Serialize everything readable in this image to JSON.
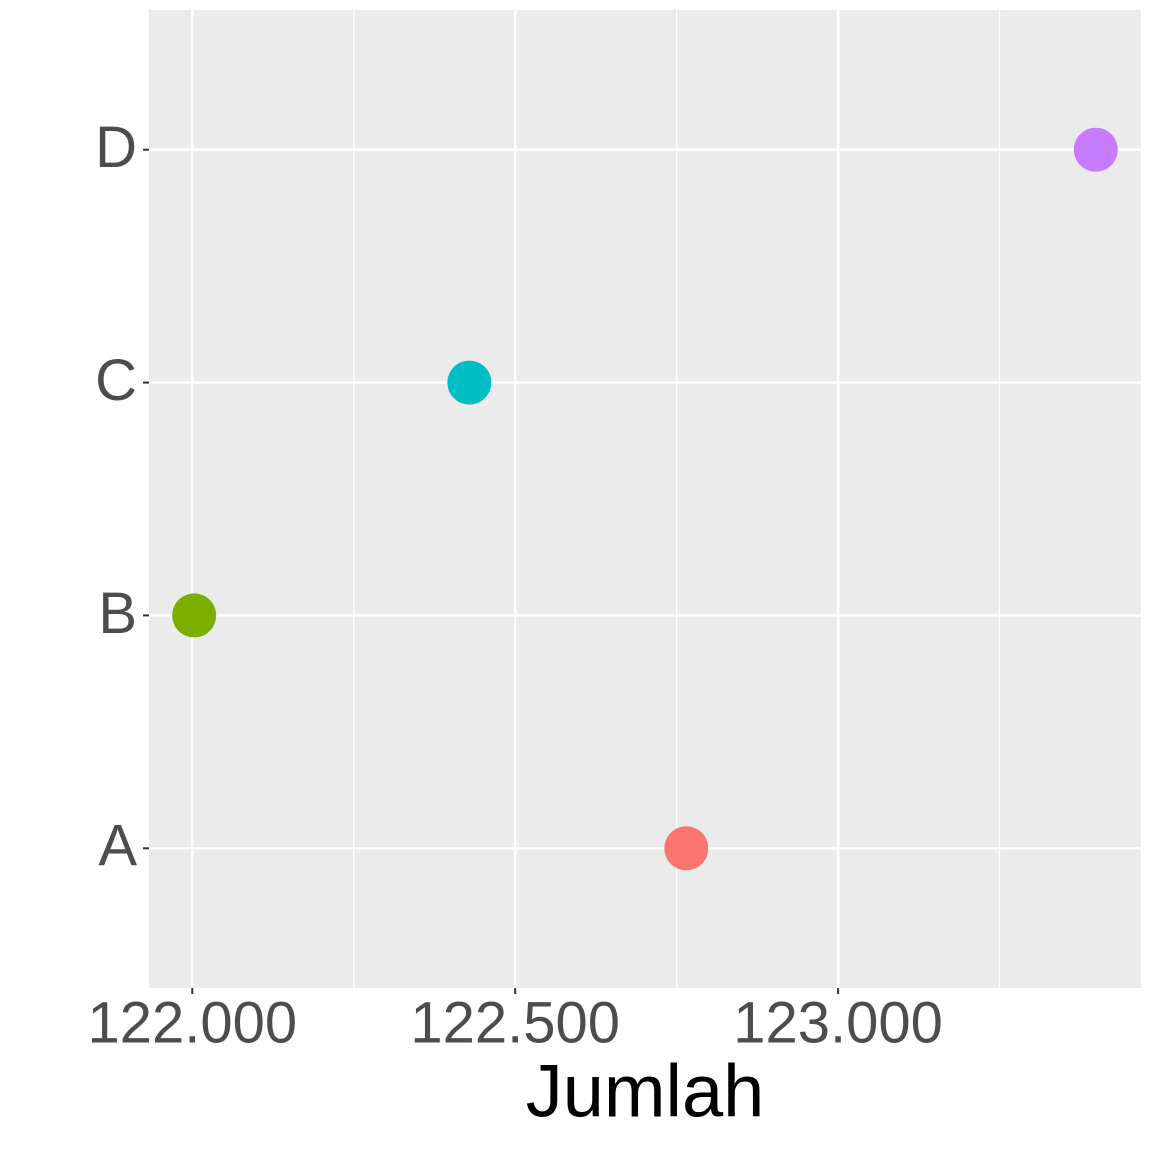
{
  "chart_data": {
    "type": "dot",
    "x_label": "Jumlah",
    "categories": [
      "A",
      "B",
      "C",
      "D"
    ],
    "values": [
      122765,
      122003,
      122429,
      123399
    ],
    "colors": [
      "#F8766D",
      "#7CAE00",
      "#00BFC4",
      "#C77CFF"
    ],
    "xlim": [
      121933,
      123469
    ],
    "xticks": [
      {
        "value": 122000,
        "label": "122.000"
      },
      {
        "value": 122500,
        "label": "122.500"
      },
      {
        "value": 123000,
        "label": "123.000"
      }
    ],
    "xminorticks": [
      122250,
      122750,
      123250
    ],
    "grid": true
  }
}
